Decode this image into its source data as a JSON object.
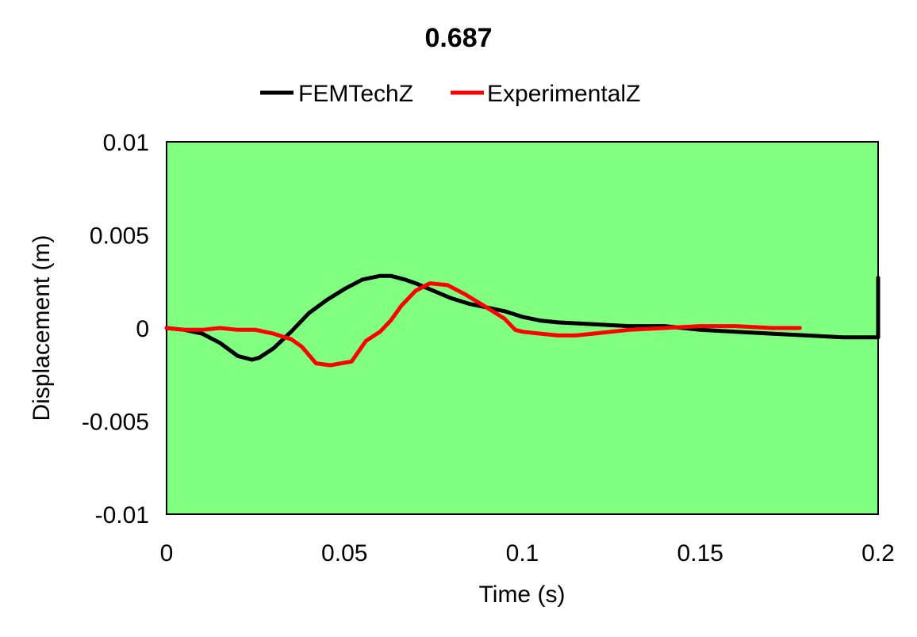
{
  "chart_data": {
    "type": "line",
    "title": "0.687",
    "xlabel": "Time (s)",
    "ylabel": "Displacement (m)",
    "xlim": [
      0,
      0.2
    ],
    "ylim": [
      -0.01,
      0.01
    ],
    "x_ticks": [
      "0",
      "0.05",
      "0.1",
      "0.15",
      "0.2"
    ],
    "y_ticks": [
      "0.01",
      "0.005",
      "0",
      "-0.005",
      "-0.01"
    ],
    "x_tick_values": [
      0,
      0.05,
      0.1,
      0.15,
      0.2
    ],
    "y_tick_values": [
      0.01,
      0.005,
      0,
      -0.005,
      -0.01
    ],
    "grid": false,
    "legend_position": "top",
    "plot_background": "#80ff80",
    "series": [
      {
        "name": "FEMTechZ",
        "color": "#000000",
        "x": [
          0,
          0.005,
          0.01,
          0.015,
          0.02,
          0.024,
          0.026,
          0.03,
          0.035,
          0.04,
          0.045,
          0.05,
          0.055,
          0.06,
          0.063,
          0.067,
          0.07,
          0.075,
          0.08,
          0.085,
          0.09,
          0.095,
          0.1,
          0.105,
          0.11,
          0.12,
          0.13,
          0.14,
          0.15,
          0.16,
          0.17,
          0.18,
          0.19,
          0.2,
          0.2,
          0.2
        ],
        "values": [
          0,
          -0.0001,
          -0.0003,
          -0.0008,
          -0.0015,
          -0.0017,
          -0.0016,
          -0.0011,
          -0.0002,
          0.0008,
          0.0015,
          0.0021,
          0.0026,
          0.0028,
          0.0028,
          0.0026,
          0.0024,
          0.002,
          0.0016,
          0.0013,
          0.0011,
          0.0009,
          0.0006,
          0.0004,
          0.0003,
          0.0002,
          0.0001,
          0.0001,
          -0.0001,
          -0.0002,
          -0.0003,
          -0.0004,
          -0.0005,
          -0.0005,
          0.0,
          0.0027
        ]
      },
      {
        "name": "ExperimentalZ",
        "color": "#ff0000",
        "x": [
          0,
          0.005,
          0.01,
          0.015,
          0.02,
          0.025,
          0.03,
          0.035,
          0.038,
          0.042,
          0.046,
          0.052,
          0.056,
          0.06,
          0.063,
          0.066,
          0.07,
          0.074,
          0.079,
          0.084,
          0.09,
          0.095,
          0.098,
          0.1,
          0.105,
          0.11,
          0.115,
          0.12,
          0.13,
          0.14,
          0.15,
          0.16,
          0.17,
          0.178
        ],
        "values": [
          0,
          -0.0001,
          -0.0001,
          0.0,
          -0.0001,
          -0.0001,
          -0.0003,
          -0.0006,
          -0.001,
          -0.0019,
          -0.002,
          -0.0018,
          -0.0007,
          -0.0002,
          0.0004,
          0.0012,
          0.002,
          0.0024,
          0.0023,
          0.0018,
          0.0011,
          0.0005,
          -0.0001,
          -0.0002,
          -0.0003,
          -0.0004,
          -0.0004,
          -0.0003,
          -0.0001,
          0.0,
          0.0001,
          0.0001,
          0.0,
          0.0
        ]
      }
    ]
  }
}
